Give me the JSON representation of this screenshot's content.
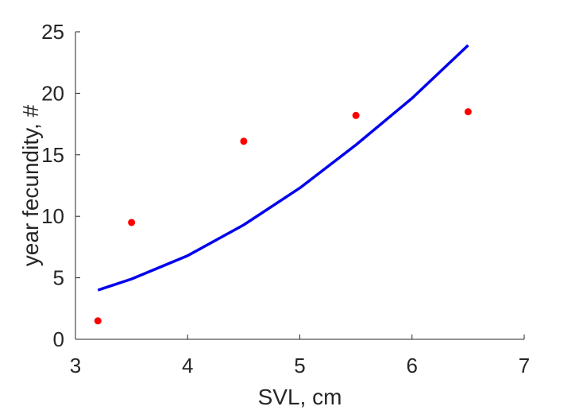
{
  "chart_data": {
    "type": "scatter",
    "xlabel": "SVL, cm",
    "ylabel": "year fecundity, #",
    "xlim": [
      3,
      7
    ],
    "ylim": [
      0,
      25
    ],
    "xticks": [
      3,
      4,
      5,
      6,
      7
    ],
    "yticks": [
      0,
      5,
      10,
      15,
      20,
      25
    ],
    "grid": false,
    "legend": "none",
    "series": [
      {
        "kind": "points",
        "color": "#ff0000",
        "x": [
          3.2,
          3.5,
          4.5,
          5.5,
          6.5
        ],
        "y": [
          1.5,
          9.5,
          16.1,
          18.2,
          18.5
        ]
      },
      {
        "kind": "curve",
        "color": "#0000ee",
        "x": [
          3.2,
          3.5,
          4.0,
          4.5,
          5.0,
          5.5,
          6.0,
          6.5
        ],
        "y": [
          4.0,
          4.9,
          6.8,
          9.3,
          12.3,
          15.8,
          19.6,
          23.9
        ]
      }
    ]
  }
}
